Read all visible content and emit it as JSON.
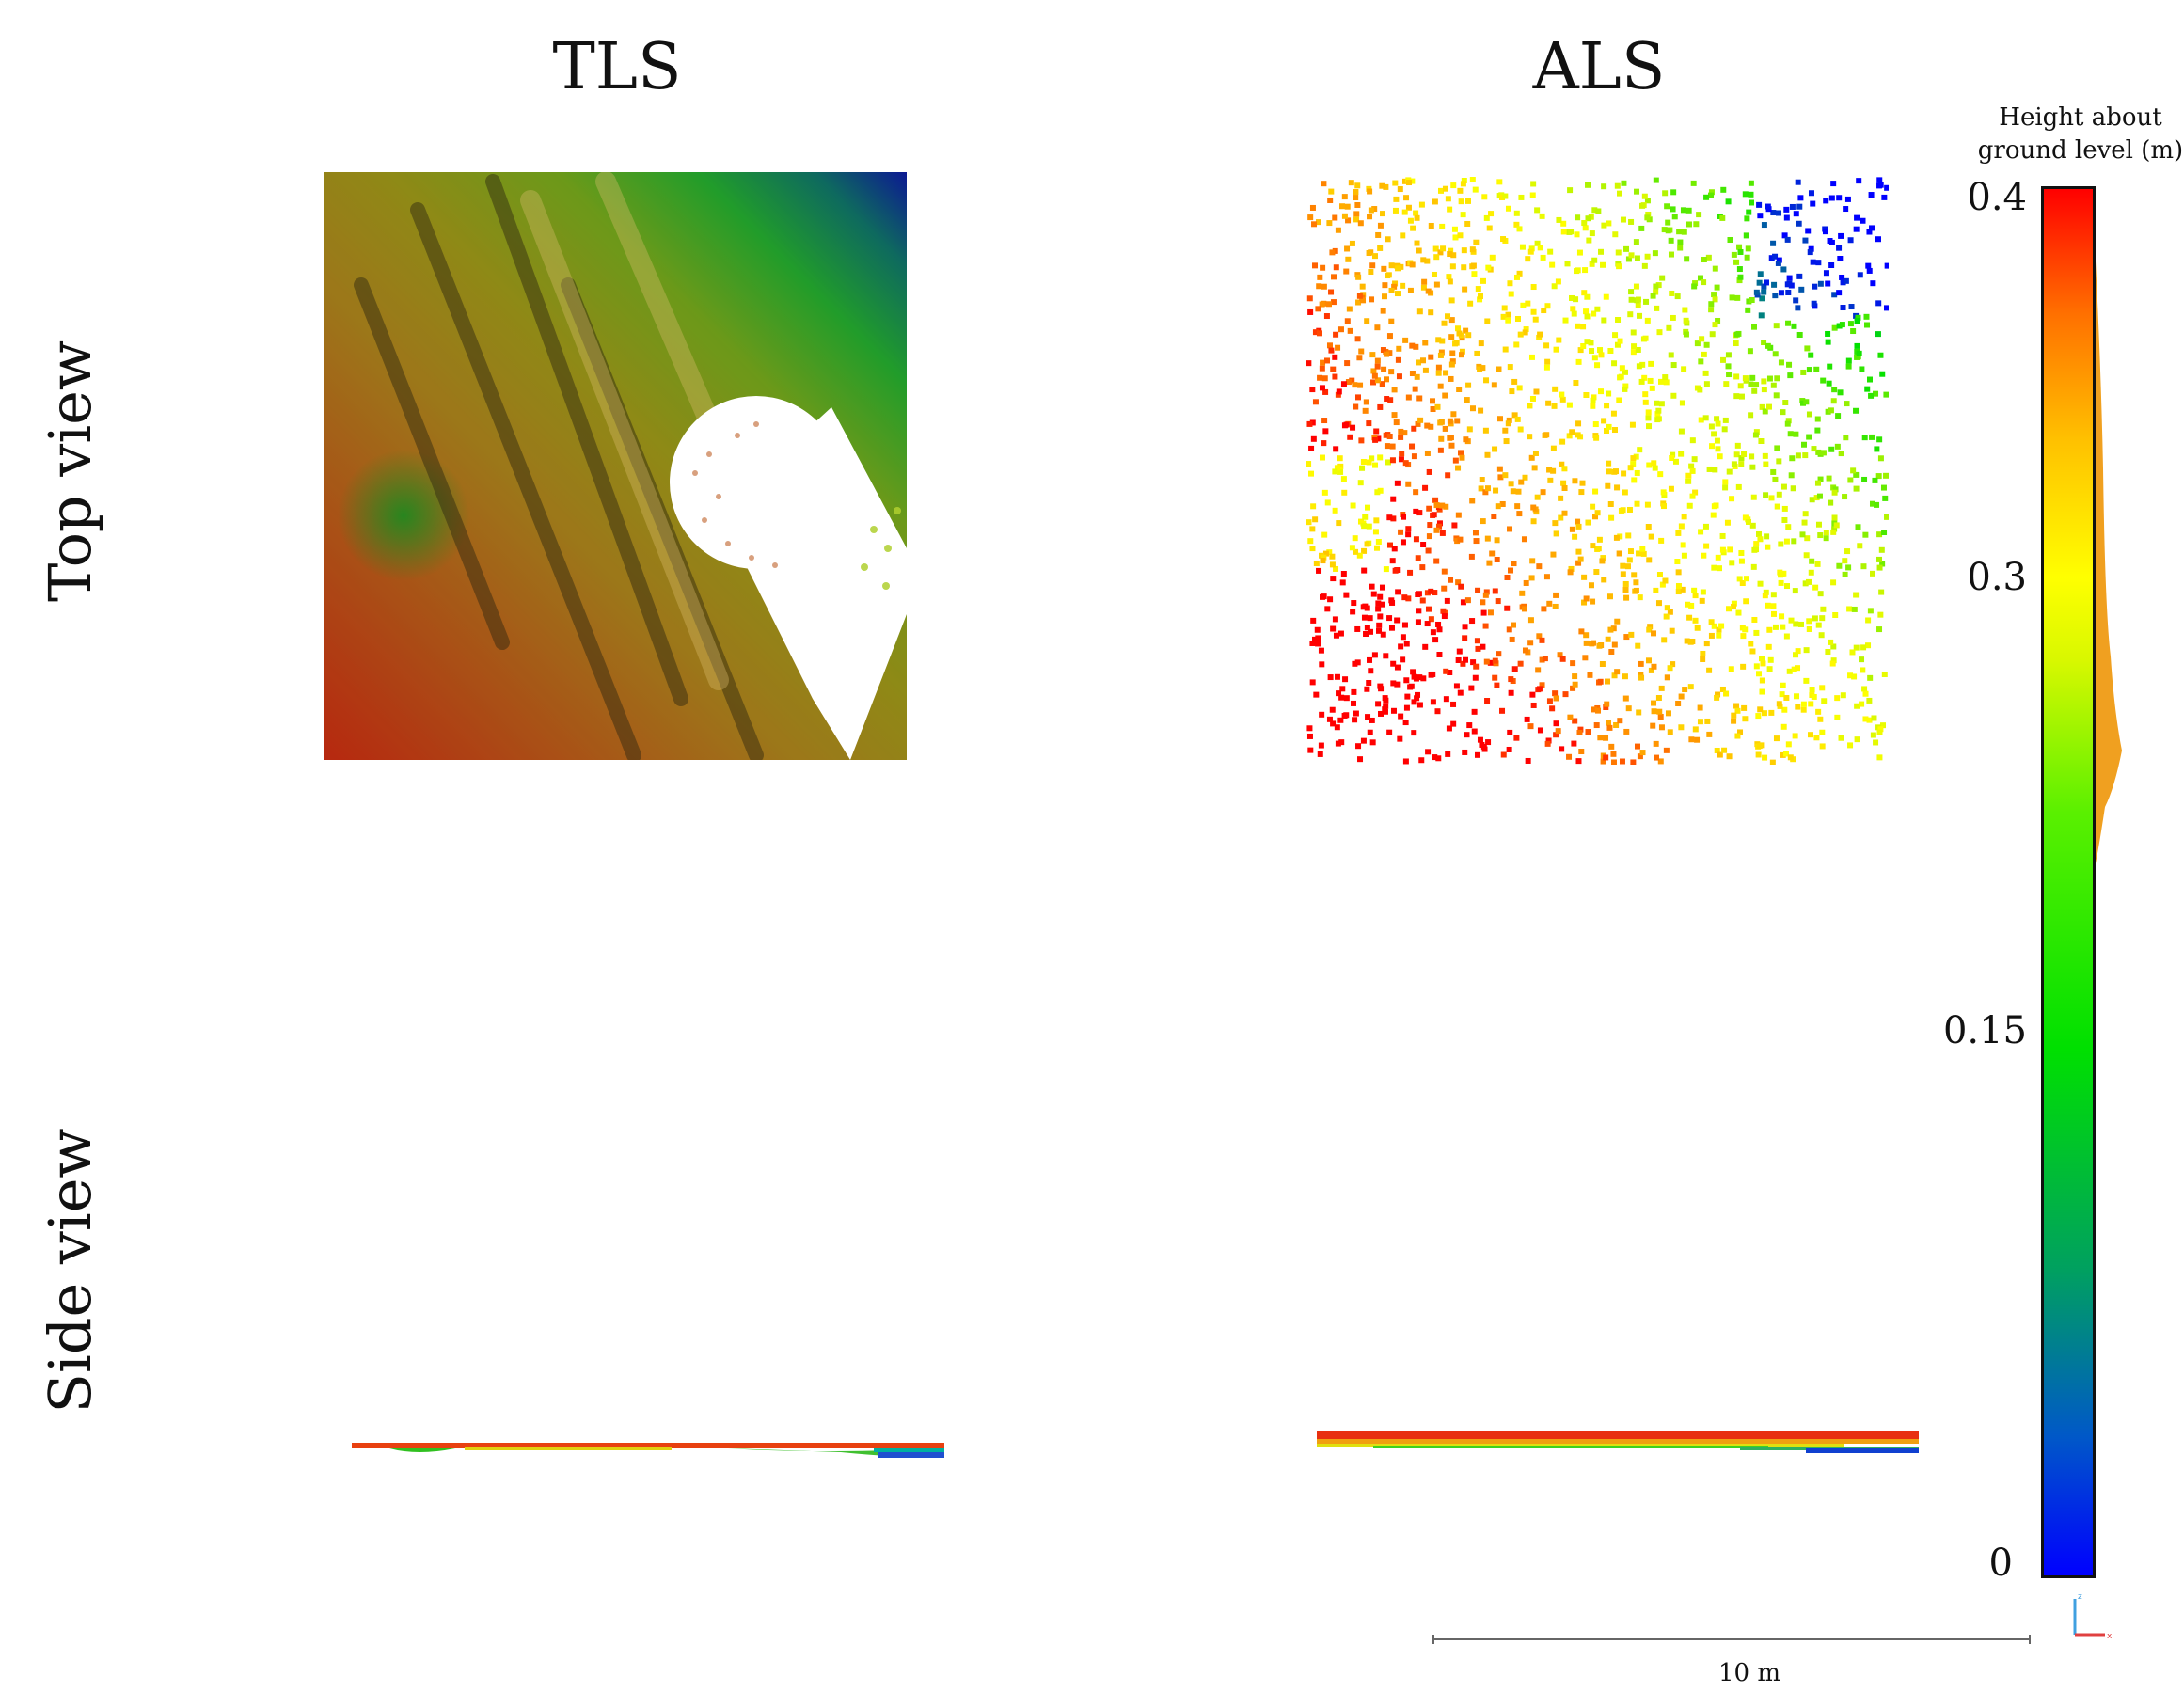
{
  "columns": {
    "left": "TLS",
    "right": "ALS"
  },
  "rows": {
    "top": "Top view",
    "bottom": "Side view"
  },
  "colorbar": {
    "title_line1": "Height about",
    "title_line2": "ground level (m)",
    "ticks": [
      "0.4",
      "0.3",
      "0.15",
      "0"
    ],
    "colors": [
      "#0000ff",
      "#00a060",
      "#00e000",
      "#ffff00",
      "#ff7000",
      "#ff0000"
    ]
  },
  "scalebar": {
    "label": "10 m"
  },
  "gizmo": {
    "axis_labels": [
      "z",
      "x"
    ]
  }
}
